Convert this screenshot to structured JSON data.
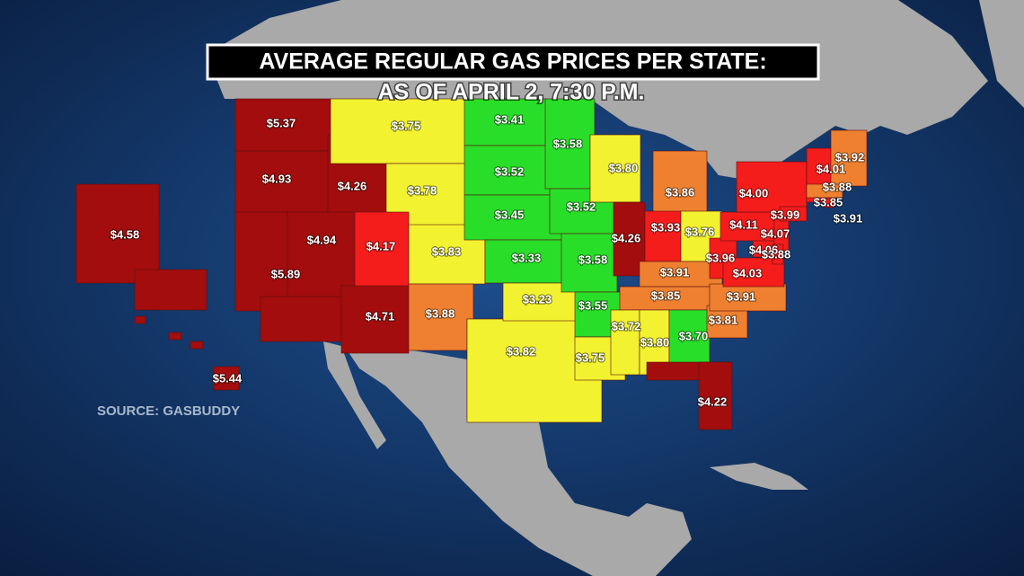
{
  "header": {
    "title": "AVERAGE REGULAR GAS PRICES PER STATE:",
    "subtitle": "AS OF APRIL 2, 7:30 P.M.",
    "source": "SOURCE: GASBUDDY"
  },
  "states": [
    {
      "price": "$5.37",
      "color": "#a30d0d"
    },
    {
      "price": "$4.93",
      "color": "#a30d0d"
    },
    {
      "price": "$4.26",
      "color": "#a30d0d"
    },
    {
      "price": "$3.75",
      "color": "#f2f230"
    },
    {
      "price": "$3.78",
      "color": "#f2f230"
    },
    {
      "price": "$4.94",
      "color": "#a30d0d"
    },
    {
      "price": "$5.89",
      "color": "#a30d0d"
    },
    {
      "price": "$4.17",
      "color": "#f51c1c"
    },
    {
      "price": "$3.83",
      "color": "#f2f230"
    },
    {
      "price": "$4.71",
      "color": "#a30d0d"
    },
    {
      "price": "$3.88",
      "color": "#ee8030"
    },
    {
      "price": "$3.41",
      "color": "#28de28"
    },
    {
      "price": "$3.52",
      "color": "#28de28"
    },
    {
      "price": "$3.45",
      "color": "#28de28"
    },
    {
      "price": "$3.33",
      "color": "#28de28"
    },
    {
      "price": "$3.23",
      "color": "#28de28"
    },
    {
      "price": "$3.82",
      "color": "#f2f230"
    },
    {
      "price": "$3.58",
      "color": "#28de28"
    },
    {
      "price": "$3.52",
      "color": "#28de28"
    },
    {
      "price": "$3.58",
      "color": "#28de28"
    },
    {
      "price": "$3.55",
      "color": "#28de28"
    },
    {
      "price": "$3.75",
      "color": "#f2f230"
    },
    {
      "price": "$3.80",
      "color": "#f2f230"
    },
    {
      "price": "$4.26",
      "color": "#a30d0d"
    },
    {
      "price": "$3.86",
      "color": "#ee8030"
    },
    {
      "price": "$3.93",
      "color": "#f51c1c"
    },
    {
      "price": "$3.76",
      "color": "#f2f230"
    },
    {
      "price": "$3.91",
      "color": "#ee8030"
    },
    {
      "price": "$3.85",
      "color": "#ee8030"
    },
    {
      "price": "$3.72",
      "color": "#f2f230"
    },
    {
      "price": "$3.80",
      "color": "#f2f230"
    },
    {
      "price": "$3.70",
      "color": "#28de28"
    },
    {
      "price": "$4.22",
      "color": "#a30d0d"
    },
    {
      "price": "$3.81",
      "color": "#ee8030"
    },
    {
      "price": "$3.91",
      "color": "#ee8030"
    },
    {
      "price": "$3.96",
      "color": "#f51c1c"
    },
    {
      "price": "$4.03",
      "color": "#f51c1c"
    },
    {
      "price": "$4.06",
      "color": "#f51c1c"
    },
    {
      "price": "$4.11",
      "color": "#f51c1c"
    },
    {
      "price": "$4.00",
      "color": "#f51c1c"
    },
    {
      "price": "$4.07",
      "color": "#f51c1c"
    },
    {
      "price": "$3.99",
      "color": "#f51c1c"
    },
    {
      "price": "$3.88",
      "color": "#f51c1c"
    },
    {
      "price": "$4.01",
      "color": "#f51c1c"
    },
    {
      "price": "$3.92",
      "color": "#ee8030"
    },
    {
      "price": "$3.88",
      "color": "#ee8030"
    },
    {
      "price": "$3.85",
      "color": "#f51c1c"
    },
    {
      "price": "$3.91",
      "color": "#f51c1c"
    },
    {
      "price": "$4.58",
      "color": "#a30d0d"
    },
    {
      "price": "$5.44",
      "color": "#a30d0d"
    }
  ]
}
